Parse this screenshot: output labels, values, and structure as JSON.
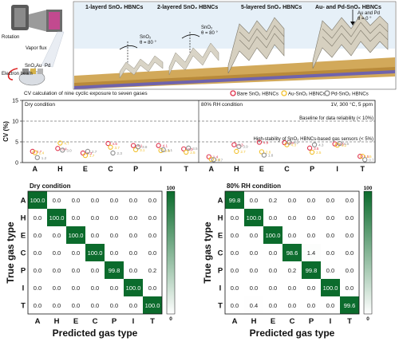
{
  "schematic": {
    "labels": {
      "rotation": "Rotation",
      "vapor_flux": "Vapor flux",
      "electron_beam": "Electron beam",
      "sno2": "SnO",
      "sno2_sub": "2",
      "au": "Au",
      "pd": "Pd"
    },
    "panel_titles": [
      "1-layerd SnO₂ HBNCs",
      "2-layered SnO₂ HBNCs",
      "5-layered SnO₂ HBNCs",
      "Au- and Pd-SnO₂ HBNCs"
    ],
    "angle_labels": [
      {
        "line1": "SnO₂",
        "line2": "θ = 80 °"
      },
      {
        "line1": "SnO₂",
        "line2": "θ = 80 °"
      },
      {
        "line1": "Au and Pd",
        "line2": "θ = 0 °"
      }
    ],
    "colors": {
      "substrate_top": "#c9a65a",
      "substrate_side": "#6a5ea8",
      "sky": "#cfe3f3",
      "column": "#d8d3c6"
    }
  },
  "chart_data": [
    {
      "type": "scatter",
      "title": "CV calculation of nine cyclic exposure to seven gases",
      "ylabel": "CV (%)",
      "ylim": [
        0,
        15
      ],
      "yticks": [
        0,
        5,
        10,
        15
      ],
      "categories": [
        "A",
        "H",
        "E",
        "C",
        "P",
        "I",
        "T"
      ],
      "conditions": [
        "Dry condition",
        "80% RH condition"
      ],
      "condition_note": "1V, 300 °C, 5 ppm",
      "legend_position": "top-right",
      "legend": [
        {
          "name": "Bare SnO₂ HBNCs",
          "color": "#e0314b"
        },
        {
          "name": "Au-SnO₂ HBNCs",
          "color": "#f2c12e"
        },
        {
          "name": "Pd-SnO₂ HBNCs",
          "color": "#8c8c8c"
        }
      ],
      "reference_lines": [
        {
          "y": 10,
          "label": "Baseline for data reliability (< 10%)"
        },
        {
          "y": 5,
          "label": "High-stability of SnO₂ HBNCs-based gas sensors (< 5%)"
        }
      ],
      "series": [
        {
          "name": "Bare SnO₂ HBNCs",
          "dry": [
            2.7,
            3.4,
            2.3,
            4.6,
            4.1,
            4.1,
            3.3
          ],
          "rh": [
            1.4,
            4.3,
            4.9,
            4.8,
            3.5,
            4.5,
            1.5
          ]
        },
        {
          "name": "Au-SnO₂ HBNCs",
          "dry": [
            2.4,
            4.7,
            1.7,
            3.7,
            3.1,
            2.9,
            2.5
          ],
          "rh": [
            0.8,
            2.7,
            2.6,
            4.3,
            2.5,
            4.2,
            1.5
          ]
        },
        {
          "name": "Pd-SnO₂ HBNCs",
          "dry": [
            1.2,
            3.0,
            2.7,
            2.3,
            3.8,
            3.1,
            3.5
          ],
          "rh": [
            0.7,
            3.9,
            1.8,
            4.9,
            4.3,
            4.6,
            0.7
          ]
        }
      ]
    },
    {
      "type": "heatmap",
      "title": "Dry condition",
      "xlabel": "Predicted gas type",
      "ylabel": "True gas type",
      "labels": [
        "A",
        "H",
        "E",
        "C",
        "P",
        "I",
        "T"
      ],
      "colorbar": {
        "min": 0,
        "max": 100,
        "min_label": "0",
        "max_label": "100",
        "color_low": "#ffffff",
        "color_high": "#0b6b2c"
      },
      "matrix": [
        [
          100.0,
          0.0,
          0.0,
          0.0,
          0.0,
          0.0,
          0.0
        ],
        [
          0.0,
          100.0,
          0.0,
          0.0,
          0.0,
          0.0,
          0.0
        ],
        [
          0.0,
          0.0,
          100.0,
          0.0,
          0.0,
          0.0,
          0.0
        ],
        [
          0.0,
          0.0,
          0.0,
          100.0,
          0.0,
          0.0,
          0.0
        ],
        [
          0.0,
          0.0,
          0.0,
          0.0,
          99.8,
          0.0,
          0.2
        ],
        [
          0.0,
          0.0,
          0.0,
          0.0,
          0.0,
          100.0,
          0.0
        ],
        [
          0.0,
          0.0,
          0.0,
          0.0,
          0.0,
          0.0,
          100.0
        ]
      ]
    },
    {
      "type": "heatmap",
      "title": "80% RH condition",
      "xlabel": "Predicted gas type",
      "ylabel": "True gas type",
      "labels": [
        "A",
        "H",
        "E",
        "C",
        "P",
        "I",
        "T"
      ],
      "colorbar": {
        "min": 0,
        "max": 100,
        "min_label": "0",
        "max_label": "100",
        "color_low": "#ffffff",
        "color_high": "#0b6b2c"
      },
      "matrix": [
        [
          99.8,
          0.0,
          0.2,
          0.0,
          0.0,
          0.0,
          0.0
        ],
        [
          0.0,
          100.0,
          0.0,
          0.0,
          0.0,
          0.0,
          0.0
        ],
        [
          0.0,
          0.0,
          100.0,
          0.0,
          0.0,
          0.0,
          0.0
        ],
        [
          0.0,
          0.0,
          0.0,
          98.6,
          1.4,
          0.0,
          0.0
        ],
        [
          0.0,
          0.0,
          0.0,
          0.2,
          99.8,
          0.0,
          0.0
        ],
        [
          0.0,
          0.0,
          0.0,
          0.0,
          0.0,
          100.0,
          0.0
        ],
        [
          0.0,
          0.4,
          0.0,
          0.0,
          0.0,
          0.0,
          99.6
        ]
      ]
    }
  ]
}
